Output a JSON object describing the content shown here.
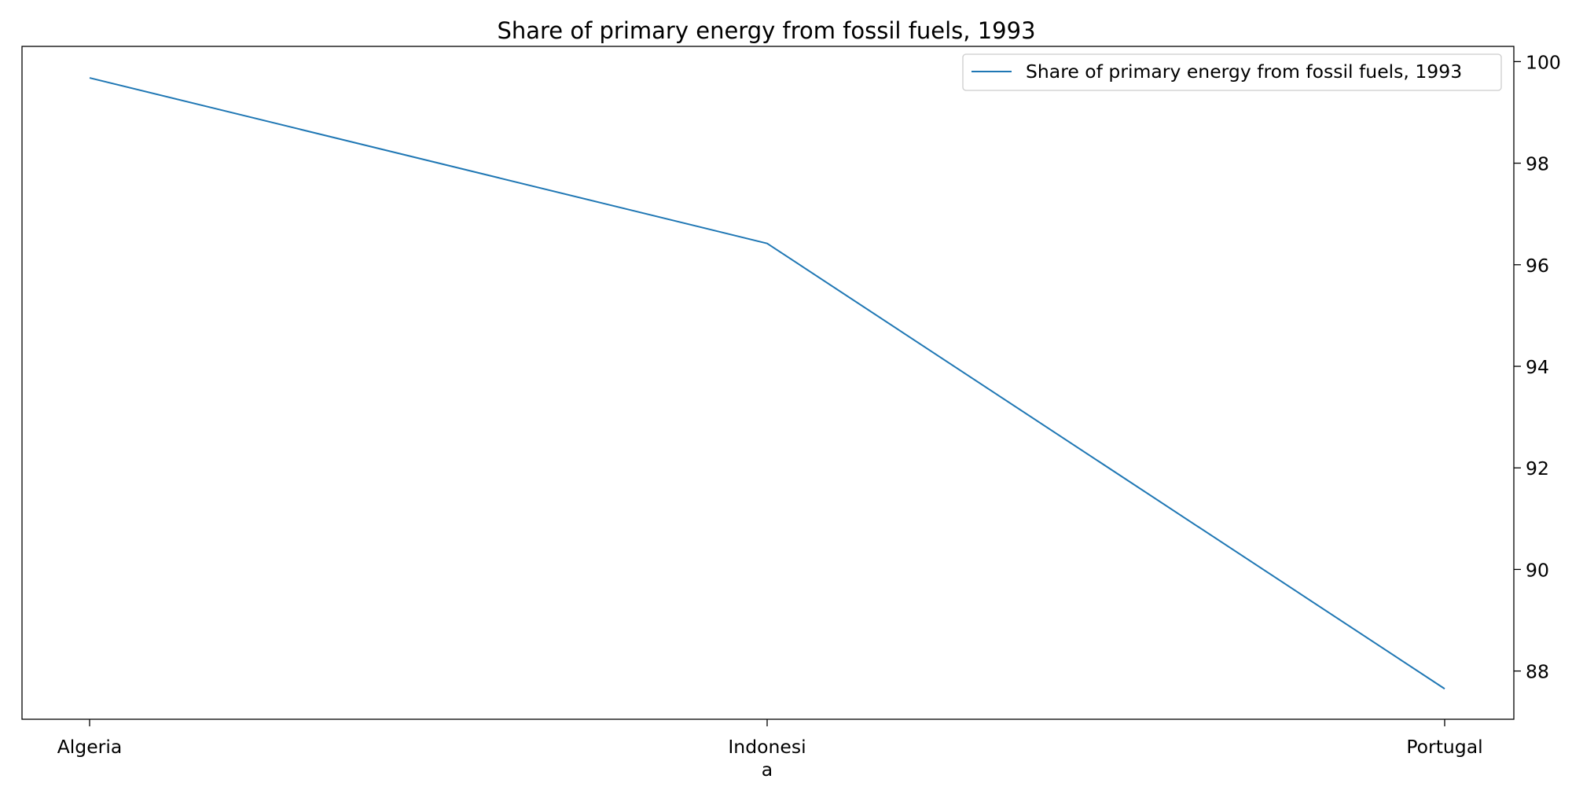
{
  "chart_data": {
    "type": "line",
    "title": "Share of primary energy from fossil fuels, 1993",
    "categories": [
      "Algeria",
      "Indonesia",
      "Portugal"
    ],
    "x_tick_labels": [
      [
        "Algeria"
      ],
      [
        "Indonesi",
        "a"
      ],
      [
        "Portugal"
      ]
    ],
    "series": [
      {
        "name": "Share of primary energy from fossil fuels, 1993",
        "values": [
          99.68,
          96.42,
          87.65
        ],
        "color": "#1f77b4"
      }
    ],
    "y_ticks": [
      88,
      90,
      92,
      94,
      96,
      98,
      100
    ],
    "ylim": [
      87.05,
      100.3
    ],
    "y_axis_side": "right",
    "xlabel": "",
    "ylabel": "",
    "grid": false,
    "legend": "top-right"
  }
}
